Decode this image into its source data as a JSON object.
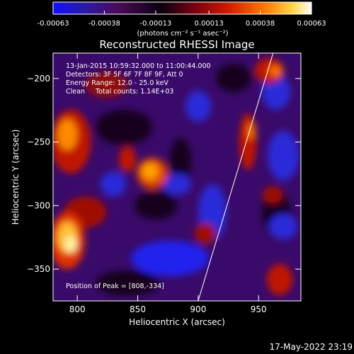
{
  "colorbar": {
    "tick_labels": [
      "-0.00063",
      "-0.00038",
      "-0.00013",
      "0.00013",
      "0.00038",
      "0.00063"
    ],
    "tick_values": [
      -0.00063,
      -0.00038,
      -0.00013,
      0.00013,
      0.00038,
      0.00063
    ],
    "range": [
      -0.00063,
      0.00063
    ],
    "units_label": "(photons cm⁻² s⁻¹ asec⁻²)",
    "colors": [
      "#1010ff",
      "#2b1aa8",
      "#4b0a5a",
      "#0a0010",
      "#7a0010",
      "#d41a00",
      "#ff7a00",
      "#ffd84a",
      "#ffffff"
    ]
  },
  "image": {
    "title": "Reconstructed RHESSI Image",
    "xlabel": "Heliocentric X (arcsec)",
    "ylabel": "Heliocentric Y (arcsec)",
    "xlim": [
      780,
      985
    ],
    "ylim": [
      -375,
      -180
    ],
    "x_ticks": [
      800,
      850,
      900,
      950
    ],
    "y_ticks": [
      -200,
      -250,
      -300,
      -350
    ],
    "annotations": [
      "13-Jan-2015 10:59:32.000 to 11:00:44.000",
      "Detectors: 3F 5F 6F 7F 8F 9F, Att 0",
      "Energy Range: 12.0 - 25.0 keV",
      "Clean     Total counts: 1.14E+03"
    ],
    "peak_label": "Position of Peak = [808,-334]",
    "limb_line": {
      "x_start": 900,
      "y_start": -375,
      "x_end": 962,
      "y_end": -180
    }
  },
  "timestamp": "17-May-2022 23:19"
}
